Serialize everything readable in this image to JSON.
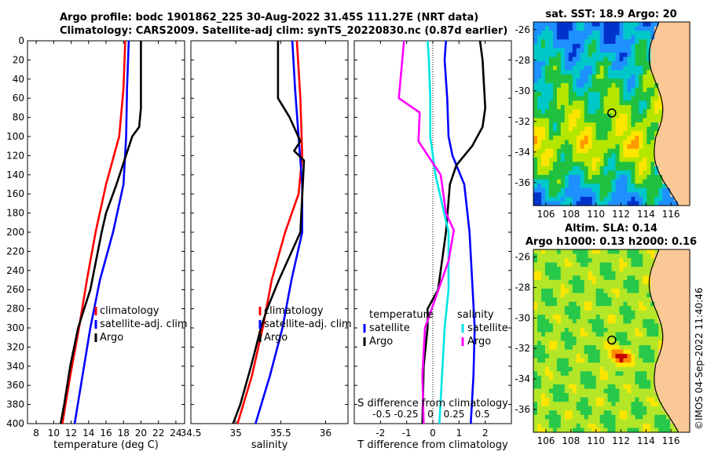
{
  "header": {
    "line1": "Argo profile: bodc 1901862_225 30-Aug-2022 31.45S 111.27E (NRT data)",
    "line2": "Climatology: CARS2009. Satellite-adj clim: synTS_20220830.nc (0.87d earlier)"
  },
  "stamp": "©IMOS 04-Sep-2022 11:40:46",
  "colors": {
    "climatology": "#ff0000",
    "satellite": "#0000ff",
    "argo": "#000000",
    "sal_satellite": "#00e5e5",
    "sal_argo": "#ff00ff"
  },
  "chart_data": [
    {
      "type": "line",
      "title": "",
      "xlabel": "temperature (deg C)",
      "ylabel": "",
      "xlim": [
        7,
        25
      ],
      "ylim": [
        400,
        0
      ],
      "xticks": [
        8,
        10,
        12,
        14,
        16,
        18,
        20,
        22,
        24
      ],
      "yticks": [
        0,
        20,
        40,
        60,
        80,
        100,
        120,
        140,
        160,
        180,
        200,
        220,
        240,
        260,
        280,
        300,
        320,
        340,
        360,
        380,
        400
      ],
      "legend": [
        "climatology",
        "satellite-adj. clim",
        "Argo"
      ],
      "series": [
        {
          "name": "climatology",
          "color": "red",
          "y": [
            0,
            50,
            100,
            150,
            200,
            250,
            300,
            350,
            400
          ],
          "x": [
            18.2,
            18.0,
            17.5,
            16.0,
            14.8,
            13.8,
            12.9,
            11.9,
            11.0
          ]
        },
        {
          "name": "satellite-adj. clim",
          "color": "blue",
          "y": [
            0,
            50,
            100,
            150,
            200,
            250,
            300,
            350,
            400
          ],
          "x": [
            18.6,
            18.4,
            18.3,
            18.0,
            16.8,
            15.3,
            14.2,
            13.3,
            12.4
          ]
        },
        {
          "name": "Argo",
          "color": "black",
          "y": [
            0,
            50,
            70,
            90,
            100,
            150,
            180,
            200,
            260,
            300,
            340,
            380,
            400
          ],
          "x": [
            20.0,
            20.0,
            20.0,
            19.8,
            19.0,
            17.2,
            16.0,
            15.5,
            14.2,
            12.8,
            11.9,
            11.2,
            10.8
          ]
        }
      ]
    },
    {
      "type": "line",
      "xlabel": "salinity",
      "xlim": [
        34.5,
        36.25
      ],
      "ylim": [
        400,
        0
      ],
      "xticks": [
        34.5,
        35,
        35.5,
        36
      ],
      "legend": [
        "climatology",
        "satellite-adj. clim",
        "Argo"
      ],
      "series": [
        {
          "name": "climatology",
          "color": "red",
          "y": [
            0,
            60,
            120,
            160,
            200,
            250,
            300,
            350,
            400
          ],
          "x": [
            35.68,
            35.72,
            35.74,
            35.7,
            35.55,
            35.4,
            35.3,
            35.18,
            35.02
          ]
        },
        {
          "name": "satellite-adj. clim",
          "color": "blue",
          "y": [
            0,
            50,
            100,
            150,
            200,
            250,
            300,
            350,
            400
          ],
          "x": [
            35.63,
            35.66,
            35.7,
            35.74,
            35.74,
            35.62,
            35.52,
            35.38,
            35.22
          ]
        },
        {
          "name": "Argo",
          "color": "black",
          "y": [
            0,
            60,
            80,
            105,
            115,
            125,
            200,
            250,
            280,
            300,
            340,
            380,
            400
          ],
          "x": [
            35.47,
            35.47,
            35.6,
            35.72,
            35.65,
            35.76,
            35.72,
            35.48,
            35.35,
            35.28,
            35.17,
            35.05,
            34.97
          ]
        }
      ]
    },
    {
      "type": "line",
      "xlabel": "T difference from climatology",
      "toplabel": "S difference from climatology",
      "xlim": [
        -3,
        3
      ],
      "ylim": [
        400,
        0
      ],
      "xticks": [
        -2,
        -1,
        0,
        1,
        2
      ],
      "top_ticks": [
        "-0.5",
        "-0.25",
        "0",
        "0.25",
        "0.5"
      ],
      "legend_left_title": "temperature",
      "legend_right_title": "salinity",
      "legend_left": [
        "satellite",
        "Argo"
      ],
      "legend_right": [
        "satellite",
        "Argo"
      ],
      "series": [
        {
          "name": "T satellite",
          "color": "blue",
          "y": [
            0,
            20,
            60,
            100,
            120,
            150,
            200,
            250,
            300,
            350,
            400
          ],
          "x": [
            0.5,
            0.45,
            0.55,
            0.6,
            0.75,
            1.2,
            1.4,
            1.5,
            1.6,
            1.55,
            1.45
          ]
        },
        {
          "name": "T Argo",
          "color": "black",
          "y": [
            0,
            20,
            70,
            90,
            110,
            130,
            150,
            200,
            260,
            280,
            300,
            340,
            400
          ],
          "x": [
            1.8,
            1.9,
            2.0,
            1.9,
            1.5,
            0.9,
            0.65,
            0.5,
            0.2,
            -0.2,
            -0.2,
            -0.35,
            -0.4
          ]
        },
        {
          "name": "S satellite",
          "color": "cyan",
          "y": [
            0,
            20,
            60,
            100,
            140,
            200,
            260,
            300,
            350,
            400
          ],
          "x": [
            -0.2,
            -0.15,
            -0.1,
            -0.1,
            0.1,
            0.6,
            0.6,
            0.45,
            0.35,
            0.25
          ]
        },
        {
          "name": "S Argo",
          "color": "magenta",
          "y": [
            0,
            30,
            60,
            75,
            105,
            140,
            180,
            198,
            230,
            300,
            350,
            400
          ],
          "x": [
            -1.1,
            -1.2,
            -1.3,
            -0.5,
            -0.55,
            0.3,
            0.5,
            0.8,
            0.6,
            -0.3,
            -0.4,
            -0.35
          ]
        }
      ]
    },
    {
      "type": "heatmap",
      "title": "sat. SST: 18.9 Argo: 20",
      "xticks": [
        106,
        108,
        110,
        112,
        114,
        116
      ],
      "yticks": [
        -26,
        -28,
        -30,
        -32,
        -34,
        -36
      ],
      "xlim": [
        105,
        117.5
      ],
      "ylim": [
        -37.5,
        -25.5
      ],
      "marker": {
        "lon": 111.27,
        "lat": -31.45
      }
    },
    {
      "type": "heatmap",
      "title": "Altim. SLA: 0.14",
      "subtitle": "Argo h1000: 0.13 h2000: 0.16",
      "xticks": [
        106,
        108,
        110,
        112,
        114,
        116
      ],
      "yticks": [
        -26,
        -28,
        -30,
        -32,
        -34,
        -36
      ],
      "xlim": [
        105,
        117.5
      ],
      "ylim": [
        -37.5,
        -25.5
      ],
      "marker": {
        "lon": 111.27,
        "lat": -31.45
      }
    }
  ]
}
